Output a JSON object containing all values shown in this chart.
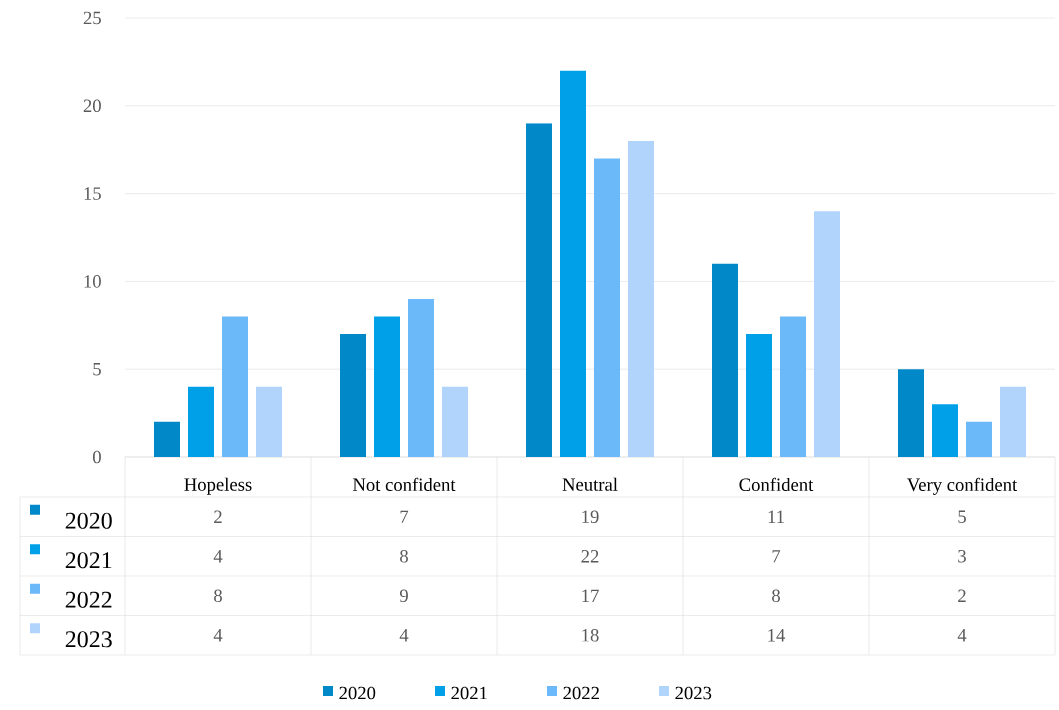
{
  "chart_data": {
    "type": "bar",
    "categories": [
      "Hopeless",
      "Not confident",
      "Neutral",
      "Confident",
      "Very confident"
    ],
    "series": [
      {
        "name": "2020",
        "color": "#0088c8",
        "values": [
          2,
          7,
          19,
          11,
          5
        ]
      },
      {
        "name": "2021",
        "color": "#00a0e9",
        "values": [
          4,
          8,
          22,
          7,
          3
        ]
      },
      {
        "name": "2022",
        "color": "#6bb9f9",
        "values": [
          8,
          9,
          17,
          8,
          2
        ]
      },
      {
        "name": "2023",
        "color": "#b0d4fb",
        "values": [
          4,
          4,
          18,
          14,
          4
        ]
      }
    ],
    "ylim": [
      0,
      25
    ],
    "yticks": [
      0,
      5,
      10,
      15,
      20,
      25
    ],
    "grid": "y",
    "legend": "bottom",
    "data_labels": true
  }
}
